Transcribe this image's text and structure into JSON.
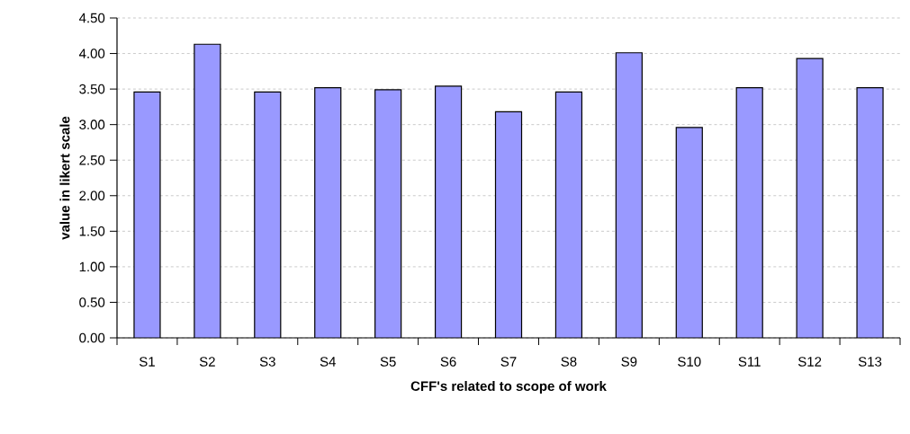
{
  "chart_data": {
    "type": "bar",
    "xlabel": "CFF's related to scope of work",
    "ylabel": "value in likert scale",
    "categories": [
      "S1",
      "S2",
      "S3",
      "S4",
      "S5",
      "S6",
      "S7",
      "S8",
      "S9",
      "S10",
      "S11",
      "S12",
      "S13"
    ],
    "values": [
      3.46,
      4.13,
      3.46,
      3.52,
      3.49,
      3.54,
      3.18,
      3.46,
      4.01,
      2.96,
      3.52,
      3.93,
      3.52
    ],
    "color": "#9999ff",
    "ylim": [
      0,
      4.5
    ],
    "yticks": [
      {
        "value": 0,
        "label": "0.00"
      },
      {
        "value": 0.5,
        "label": "0.50"
      },
      {
        "value": 1,
        "label": "1.00"
      },
      {
        "value": 1.5,
        "label": "1.50"
      },
      {
        "value": 2,
        "label": "2.00"
      },
      {
        "value": 2.5,
        "label": "2.50"
      },
      {
        "value": 3,
        "label": "3.00"
      },
      {
        "value": 3.5,
        "label": "3.50"
      },
      {
        "value": 4,
        "label": "4.00"
      },
      {
        "value": 4.5,
        "label": "4.50"
      }
    ],
    "grid": "y"
  }
}
